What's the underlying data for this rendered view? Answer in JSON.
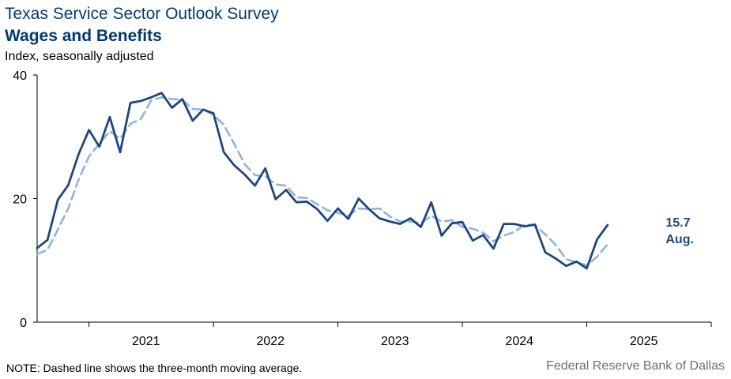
{
  "header": {
    "title": "Texas Service Sector Outlook Survey",
    "subtitle": "Wages and Benefits",
    "units": "Index, seasonally adjusted"
  },
  "footer": {
    "note": "NOTE: Dashed line shows the three-month moving average.",
    "source": "Federal Reserve Bank of Dallas"
  },
  "chart_data": {
    "type": "line",
    "x_start": "2020-08",
    "x_end": "2025-08",
    "ylim": [
      0,
      40
    ],
    "yticks": [
      0,
      20,
      40
    ],
    "xtick_labels": [
      "2021",
      "2022",
      "2023",
      "2024",
      "2025"
    ],
    "grid": false,
    "colors": {
      "index": "#1f477d",
      "moving_average": "#8fb3e0"
    },
    "series": [
      {
        "role": "index",
        "values": [
          12.0,
          13.3,
          19.8,
          22.2,
          27.2,
          31.1,
          28.4,
          33.2,
          27.5,
          35.5,
          35.8,
          36.4,
          37.1,
          34.7,
          36.1,
          32.6,
          34.4,
          33.8,
          27.5,
          25.4,
          23.9,
          22.1,
          24.9,
          19.9,
          21.4,
          19.4,
          19.5,
          18.3,
          16.4,
          18.4,
          16.7,
          20.0,
          18.3,
          16.8,
          16.3,
          15.9,
          16.8,
          15.4,
          19.4,
          14.0,
          16.0,
          16.2,
          13.2,
          14.1,
          11.9,
          15.9,
          15.9,
          15.5,
          15.8,
          11.3,
          10.3,
          9.1,
          9.8,
          8.7,
          13.4,
          15.7
        ]
      },
      {
        "role": "moving_average",
        "values": [
          11.0,
          11.7,
          15.0,
          18.4,
          23.1,
          26.8,
          28.9,
          30.9,
          29.7,
          32.1,
          32.9,
          35.9,
          36.4,
          36.1,
          36.0,
          34.5,
          34.4,
          33.6,
          31.9,
          28.9,
          25.6,
          23.8,
          23.6,
          22.3,
          22.1,
          20.2,
          20.1,
          19.1,
          18.1,
          17.7,
          17.2,
          18.4,
          18.3,
          18.4,
          17.1,
          16.3,
          16.3,
          16.0,
          17.2,
          16.3,
          16.5,
          15.4,
          15.1,
          14.5,
          13.1,
          14.0,
          14.6,
          15.8,
          15.7,
          14.2,
          12.5,
          10.2,
          9.7,
          9.2,
          10.6,
          12.6
        ]
      }
    ],
    "last_value_label": "15.7",
    "last_month_label": "Aug."
  }
}
